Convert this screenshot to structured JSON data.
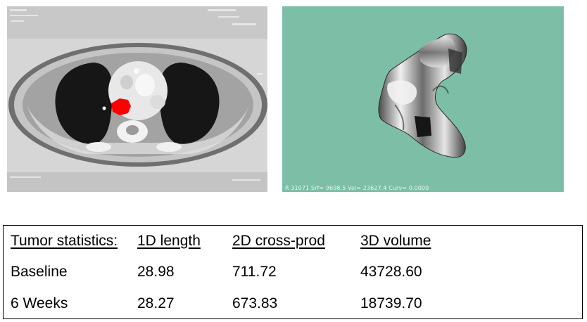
{
  "ct_scan": {
    "overlay_lines": [
      "",
      "",
      ""
    ],
    "tumor_color": "#ff0000"
  },
  "model_3d": {
    "background_color": "#7dbfa6",
    "readout": "R 31071  Srf=   9698.5 Vol=   23627.4 Curv=   0.0000"
  },
  "tumor_statistics": {
    "headers": [
      "Tumor statistics:",
      "1D length",
      "2D cross-prod",
      "3D volume"
    ],
    "rows": [
      {
        "label": "Baseline",
        "length_1d": "28.98",
        "cross_prod_2d": "711.72",
        "volume_3d": "43728.60"
      },
      {
        "label": "6 Weeks",
        "length_1d": "28.27",
        "cross_prod_2d": "673.83",
        "volume_3d": "18739.70"
      }
    ]
  }
}
